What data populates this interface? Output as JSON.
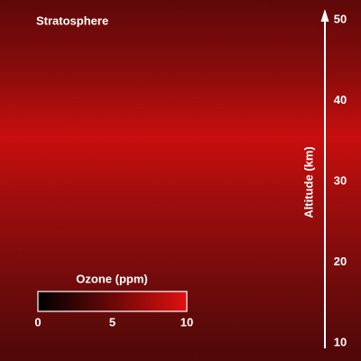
{
  "title": "Stratosphere",
  "altitude_axis": {
    "label": "Altitude (km)",
    "lim": [
      10,
      50
    ],
    "ticks": [
      10,
      20,
      30,
      40,
      50
    ]
  },
  "colorbar": {
    "label": "Ozone (ppm)",
    "lim": [
      0,
      10
    ],
    "ticks": [
      0,
      5,
      10
    ]
  }
}
